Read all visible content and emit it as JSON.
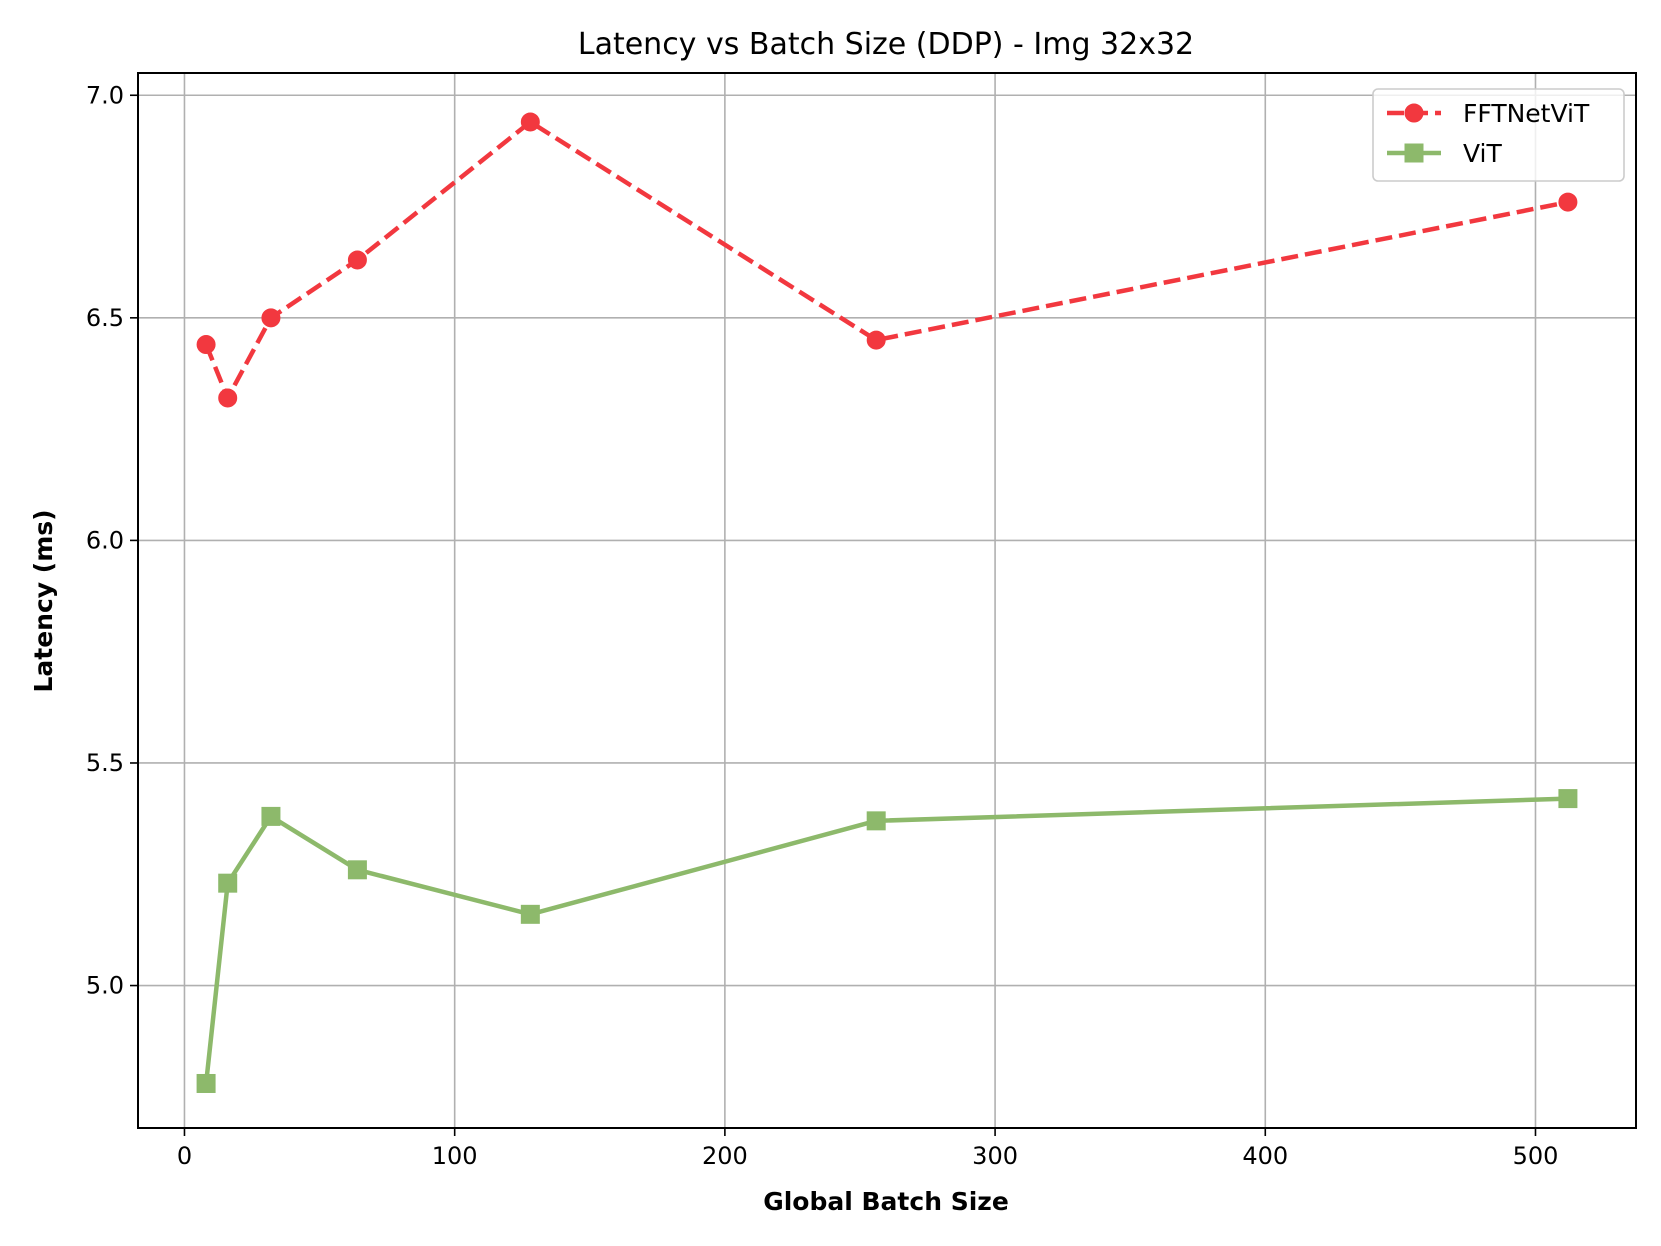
{
  "chart_data": {
    "type": "line",
    "title": "Latency vs Batch Size (DDP) - Img 32x32",
    "xlabel": "Global Batch Size",
    "ylabel": "Latency (ms)",
    "xlim": [
      -17.2,
      537.2
    ],
    "ylim": [
      4.68,
      7.05
    ],
    "xticks": [
      0,
      100,
      200,
      300,
      400,
      500
    ],
    "xtick_labels": [
      "0",
      "100",
      "200",
      "300",
      "400",
      "500"
    ],
    "yticks": [
      5.0,
      5.5,
      6.0,
      6.5,
      7.0
    ],
    "ytick_labels": [
      "5.0",
      "5.5",
      "6.0",
      "6.5",
      "7.0"
    ],
    "grid": true,
    "legend_position": "top-right",
    "x": [
      8,
      16,
      32,
      64,
      128,
      256,
      512
    ],
    "series": [
      {
        "name": "FFTNetViT",
        "values": [
          6.44,
          6.32,
          6.5,
          6.63,
          6.94,
          6.45,
          6.76
        ],
        "color": "#f2383f",
        "line_style": "dashed",
        "marker": "circle"
      },
      {
        "name": "ViT",
        "values": [
          4.78,
          5.23,
          5.38,
          5.26,
          5.16,
          5.37,
          5.42
        ],
        "color": "#8db96b",
        "line_style": "solid",
        "marker": "square"
      }
    ]
  }
}
